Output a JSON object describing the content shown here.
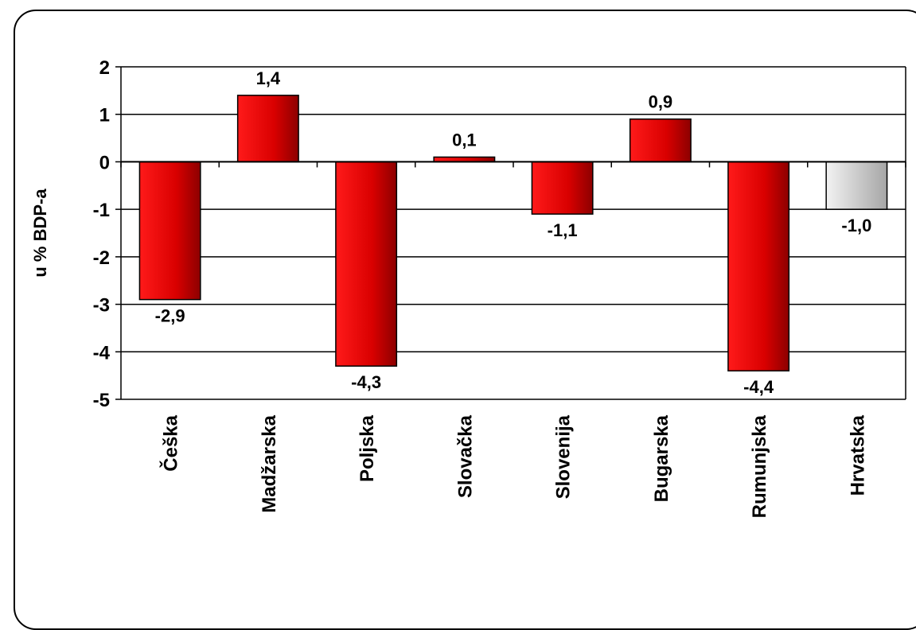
{
  "chart_data": {
    "type": "bar",
    "ylabel": "u % BDP-a",
    "ylim": [
      -5,
      2
    ],
    "yticks": [
      2,
      1,
      0,
      -1,
      -2,
      -3,
      -4,
      -5
    ],
    "grid": true,
    "categories": [
      "Češka",
      "Madžarska",
      "Poljska",
      "Slovačka",
      "Slovenija",
      "Bugarska",
      "Rumunjska",
      "Hrvatska"
    ],
    "values": [
      -2.9,
      1.4,
      -4.3,
      0.1,
      -1.1,
      0.9,
      -4.4,
      -1.0
    ],
    "value_labels": [
      "-2,9",
      "1,4",
      "-4,3",
      "0,1",
      "-1,1",
      "0,9",
      "-4,4",
      "-1,0"
    ],
    "bar_colors": [
      "#e60000",
      "#e60000",
      "#e60000",
      "#e60000",
      "#e60000",
      "#e60000",
      "#e60000",
      "#b8b8b8"
    ]
  }
}
